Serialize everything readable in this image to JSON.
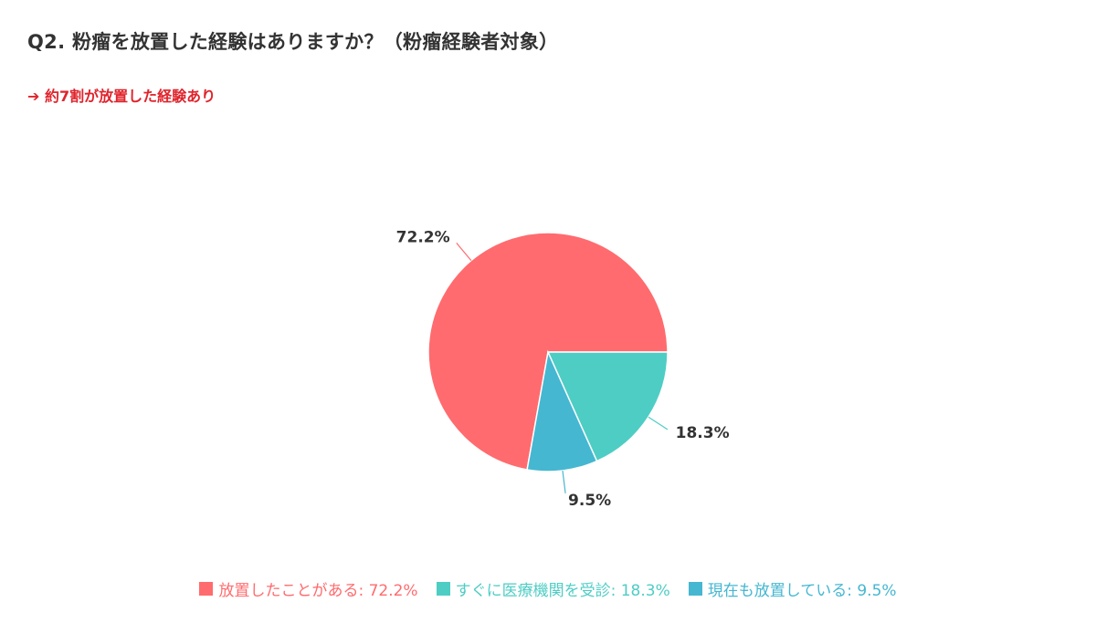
{
  "title": "Q2. 粉瘤を放置した経験はありますか？（粉瘤経験者対象）",
  "subtitle": "➔ 約7割が放置した経験あり",
  "chart_data": {
    "type": "pie",
    "title": "Q2. 粉瘤を放置した経験はありますか？（粉瘤経験者対象）",
    "subtitle": "➔ 約7割が放置した経験あり",
    "legend_position": "bottom",
    "slices": [
      {
        "label": "放置したことがある",
        "value": 72.2,
        "display": "72.2%",
        "legend_text": "放置したことがある: 72.2%",
        "color": "#ff6b6e"
      },
      {
        "label": "すぐに医療機関を受診",
        "value": 18.3,
        "display": "18.3%",
        "legend_text": "すぐに医療機関を受診: 18.3%",
        "color": "#4ecdc4"
      },
      {
        "label": "現在も放置している",
        "value": 9.5,
        "display": "9.5%",
        "legend_text": "現在も放置している: 9.5%",
        "color": "#45b7d1"
      }
    ]
  }
}
